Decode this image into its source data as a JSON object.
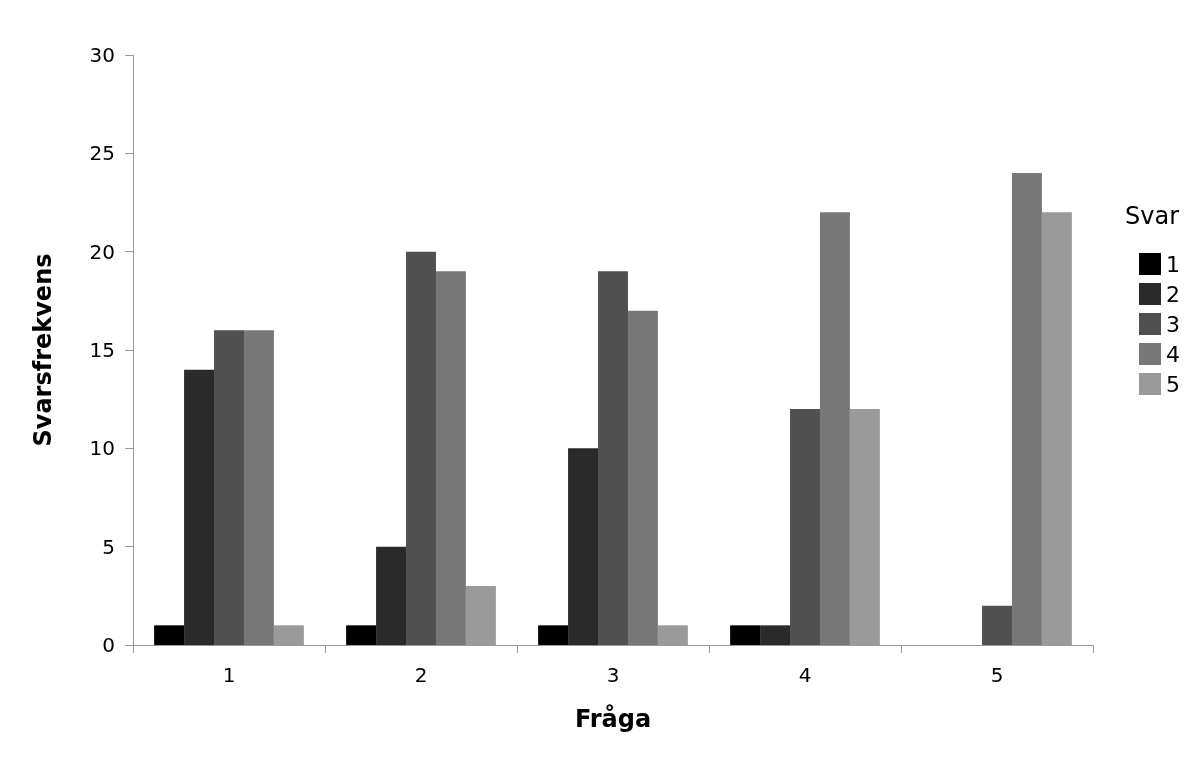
{
  "chart_data": {
    "type": "bar",
    "xlabel": "Fråga",
    "ylabel": "Svarsfrekvens",
    "legend_title": "Svar",
    "categories": [
      "1",
      "2",
      "3",
      "4",
      "5"
    ],
    "series": [
      {
        "name": "1",
        "color": "#000000",
        "values": [
          1,
          1,
          1,
          1,
          0
        ]
      },
      {
        "name": "2",
        "color": "#2a2a2a",
        "values": [
          14,
          5,
          10,
          1,
          0
        ]
      },
      {
        "name": "3",
        "color": "#505050",
        "values": [
          16,
          20,
          19,
          12,
          2
        ]
      },
      {
        "name": "4",
        "color": "#787878",
        "values": [
          16,
          19,
          17,
          22,
          24
        ]
      },
      {
        "name": "5",
        "color": "#9a9a9a",
        "values": [
          1,
          3,
          1,
          12,
          22
        ]
      }
    ],
    "ylim": [
      0,
      30
    ],
    "yticks": [
      0,
      5,
      10,
      15,
      20,
      25,
      30
    ],
    "grid": false,
    "legend": "right"
  }
}
